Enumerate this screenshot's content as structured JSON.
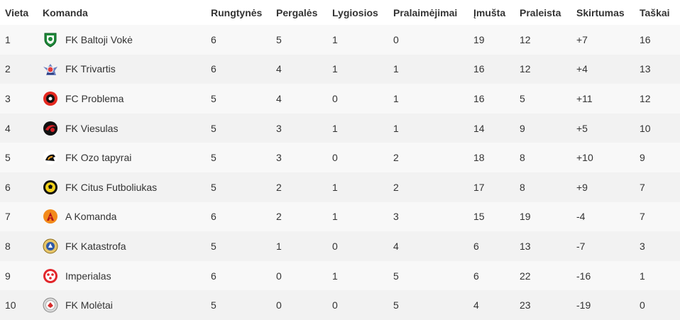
{
  "headers": {
    "place": "Vieta",
    "team": "Komanda",
    "played": "Rungtynės",
    "wins": "Pergalės",
    "draws": "Lygiosios",
    "losses": "Pralaimėjimai",
    "scored": "Įmušta",
    "conceded": "Praleista",
    "diff": "Skirtumas",
    "points": "Taškai"
  },
  "rows": [
    {
      "place": "1",
      "team": "FK Baltoji Vokė",
      "logo_icon": "green-shield-logo-icon",
      "played": "6",
      "wins": "5",
      "draws": "1",
      "losses": "0",
      "scored": "19",
      "conceded": "12",
      "diff": "+7",
      "points": "16"
    },
    {
      "place": "2",
      "team": "FK Trivartis",
      "logo_icon": "winged-crest-logo-icon",
      "played": "6",
      "wins": "4",
      "draws": "1",
      "losses": "1",
      "scored": "16",
      "conceded": "12",
      "diff": "+4",
      "points": "13"
    },
    {
      "place": "3",
      "team": "FC Problema",
      "logo_icon": "red-black-ball-logo-icon",
      "played": "5",
      "wins": "4",
      "draws": "0",
      "losses": "1",
      "scored": "16",
      "conceded": "5",
      "diff": "+11",
      "points": "12"
    },
    {
      "place": "4",
      "team": "FK Viesulas",
      "logo_icon": "red-swirl-logo-icon",
      "played": "5",
      "wins": "3",
      "draws": "1",
      "losses": "1",
      "scored": "14",
      "conceded": "9",
      "diff": "+5",
      "points": "10"
    },
    {
      "place": "5",
      "team": "FK Ozo tapyrai",
      "logo_icon": "tapir-logo-icon",
      "played": "5",
      "wins": "3",
      "draws": "0",
      "losses": "2",
      "scored": "18",
      "conceded": "8",
      "diff": "+10",
      "points": "9"
    },
    {
      "place": "6",
      "team": "FK Citus Futboliukas",
      "logo_icon": "yellow-black-ball-logo-icon",
      "played": "5",
      "wins": "2",
      "draws": "1",
      "losses": "2",
      "scored": "17",
      "conceded": "8",
      "diff": "+9",
      "points": "7"
    },
    {
      "place": "7",
      "team": "A Komanda",
      "logo_icon": "orange-a-letter-logo-icon",
      "played": "6",
      "wins": "2",
      "draws": "1",
      "losses": "3",
      "scored": "15",
      "conceded": "19",
      "diff": "-4",
      "points": "7"
    },
    {
      "place": "8",
      "team": "FK Katastrofa",
      "logo_icon": "gold-blue-crest-logo-icon",
      "played": "5",
      "wins": "1",
      "draws": "0",
      "losses": "4",
      "scored": "6",
      "conceded": "13",
      "diff": "-7",
      "points": "3"
    },
    {
      "place": "9",
      "team": "Imperialas",
      "logo_icon": "red-white-ball-logo-icon",
      "played": "6",
      "wins": "0",
      "draws": "1",
      "losses": "5",
      "scored": "6",
      "conceded": "22",
      "diff": "-16",
      "points": "1"
    },
    {
      "place": "10",
      "team": "FK Molėtai",
      "logo_icon": "grey-red-crest-logo-icon",
      "played": "5",
      "wins": "0",
      "draws": "0",
      "losses": "5",
      "scored": "4",
      "conceded": "23",
      "diff": "-19",
      "points": "0"
    }
  ]
}
